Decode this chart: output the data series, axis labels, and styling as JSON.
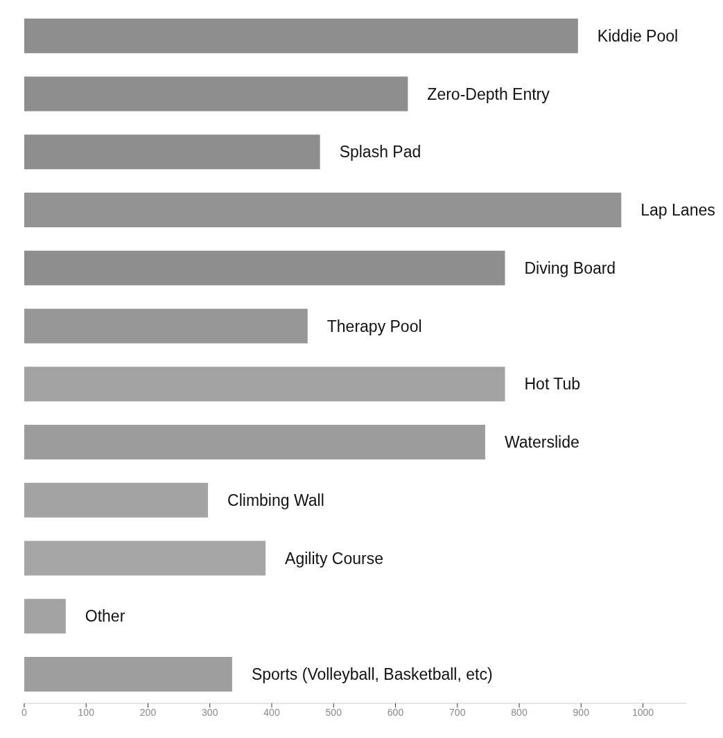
{
  "chart_data": {
    "type": "bar",
    "orientation": "horizontal",
    "categories": [
      "Kiddie Pool",
      "Zero-Depth Entry",
      "Splash Pad",
      "Lap Lanes",
      "Diving Board",
      "Therapy Pool",
      "Hot Tub",
      "Waterslide",
      "Climbing Wall",
      "Agility Course",
      "Other",
      "Sports (Volleyball, Basketball, etc)"
    ],
    "values": [
      895,
      620,
      478,
      965,
      777,
      458,
      777,
      745,
      297,
      390,
      67,
      336
    ],
    "colors": [
      "#8e8e8e",
      "#8e8e8e",
      "#8e8e8e",
      "#939393",
      "#8e8e8e",
      "#979797",
      "#a3a3a3",
      "#9c9c9c",
      "#a3a3a3",
      "#a6a6a6",
      "#a3a3a3",
      "#9e9e9e"
    ],
    "xlim": [
      0,
      1070
    ],
    "xticks": [
      0,
      100,
      200,
      300,
      400,
      500,
      600,
      700,
      800,
      900,
      1000
    ],
    "tick_labels": "x"
  }
}
